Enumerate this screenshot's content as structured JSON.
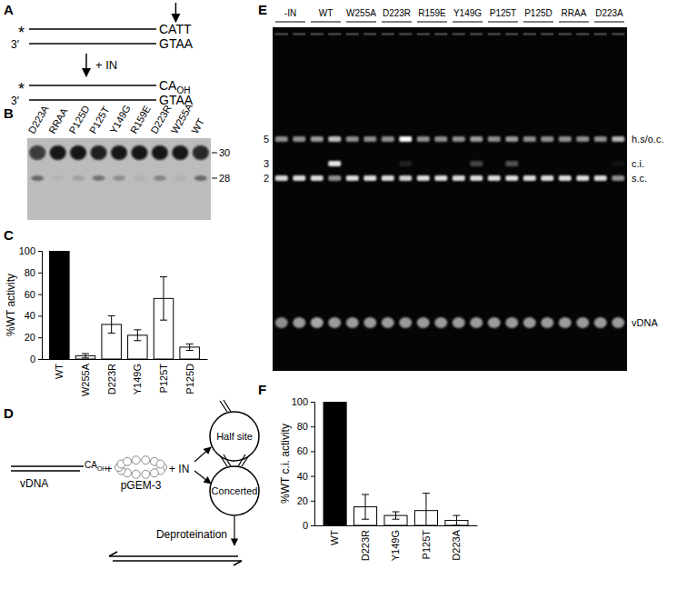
{
  "panel_labels": [
    "A",
    "B",
    "C",
    "D",
    "E",
    "F"
  ],
  "diagram_a": {
    "label": "*",
    "top_strand": "CATT",
    "bottom_label": "3′",
    "bottom_strand": "GTAA",
    "reagent": "+ IN",
    "product_label": "*",
    "product_top_strand": "CA",
    "product_top_subscript": "OH",
    "product_bottom_label": "3′",
    "product_bottom_strand": "GTAA"
  },
  "gel_b": {
    "lanes": [
      "D223A",
      "RRAA",
      "P125D",
      "P125T",
      "Y149G",
      "R159E",
      "D223R",
      "W255A",
      "WT"
    ],
    "size_labels": [
      30,
      28
    ],
    "band_intensity": [
      [
        0.75,
        0.95,
        0.95,
        0.9,
        0.95,
        0.95,
        0.95,
        0.95,
        0.85
      ],
      [
        0.45,
        0.05,
        0.15,
        0.4,
        0.25,
        0.05,
        0.3,
        0.05,
        0.45
      ]
    ]
  },
  "chart_data": [
    {
      "type": "bar",
      "y_label": "%WT activity",
      "categories": [
        "WT",
        "W255A",
        "D223R",
        "Y149G",
        "P125T",
        "P125D"
      ],
      "values": [
        100,
        3,
        32,
        22,
        56,
        11
      ],
      "errors": [
        null,
        2,
        8,
        5,
        20,
        3
      ],
      "colors": [
        "#000000",
        "#ffffff",
        "#ffffff",
        "#ffffff",
        "#ffffff",
        "#ffffff"
      ],
      "ylim": [
        0,
        100
      ],
      "yticks": [
        0,
        20,
        40,
        60,
        80,
        100
      ]
    },
    {
      "type": "bar",
      "y_label": "%WT c.i. activity",
      "categories": [
        "WT",
        "D223R",
        "Y149G",
        "P125T",
        "D223A"
      ],
      "values": [
        100,
        15,
        8,
        12,
        4
      ],
      "errors": [
        null,
        10,
        3,
        14,
        4
      ],
      "colors": [
        "#000000",
        "#ffffff",
        "#ffffff",
        "#ffffff",
        "#ffffff"
      ],
      "ylim": [
        0,
        100
      ],
      "yticks": [
        0,
        20,
        40,
        60,
        80,
        100
      ]
    }
  ],
  "diagram_d": {
    "substrate_end": "CA",
    "substrate_subscript": "OH",
    "substrate": "vDNA",
    "plus": "+",
    "plasmid": "pGEM-3",
    "reagent": "+ IN",
    "products": [
      "Half site",
      "Concerted"
    ],
    "step": "Deproteination"
  },
  "gel_e": {
    "lanes": [
      "-IN",
      "WT",
      "W255A",
      "D223R",
      "R159E",
      "Y149G",
      "P125T",
      "P125D",
      "RRAA",
      "D223A"
    ],
    "size_labels": [
      5,
      3,
      2
    ],
    "band_labels": [
      "h.s/o.c.",
      "c.i.",
      "s.c.",
      "vDNA"
    ],
    "band_intensity": [
      [
        0.55,
        0.55,
        0.6,
        0.75,
        0.55,
        0.55,
        0.55,
        1.0,
        0.55,
        0.55,
        0.55,
        0.6,
        0.55,
        0.6,
        0.55,
        0.55,
        0.55,
        0.55,
        0.55,
        0.7
      ],
      [
        0,
        0,
        0,
        0.9,
        0,
        0,
        0,
        0.1,
        0,
        0,
        0,
        0.25,
        0,
        0.3,
        0,
        0,
        0,
        0,
        0,
        0.05
      ],
      [
        0.85,
        0.85,
        0.85,
        0.55,
        0.85,
        0.85,
        0.85,
        0.8,
        0.85,
        0.85,
        0.85,
        0.85,
        0.85,
        0.85,
        0.85,
        0.85,
        0.85,
        0.85,
        0.85,
        0.55
      ],
      [
        0.55,
        0.6,
        0.65,
        0.6,
        0.6,
        0.6,
        0.6,
        0.6,
        0.6,
        0.6,
        0.6,
        0.6,
        0.6,
        0.6,
        0.6,
        0.6,
        0.6,
        0.6,
        0.6,
        0.6
      ]
    ]
  }
}
